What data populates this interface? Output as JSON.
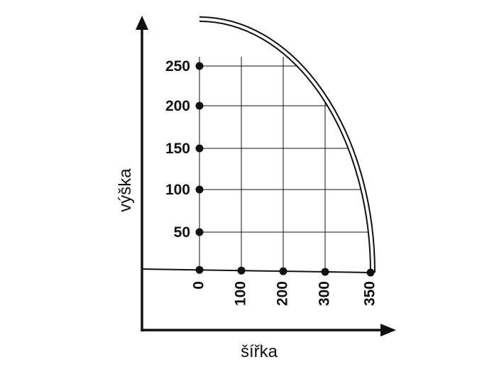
{
  "axes": {
    "y_label": "výška",
    "x_label": "šířka"
  },
  "x_marks": [
    0,
    100,
    200,
    300,
    350
  ],
  "y_marks": [
    50,
    100,
    150,
    200,
    250
  ]
}
